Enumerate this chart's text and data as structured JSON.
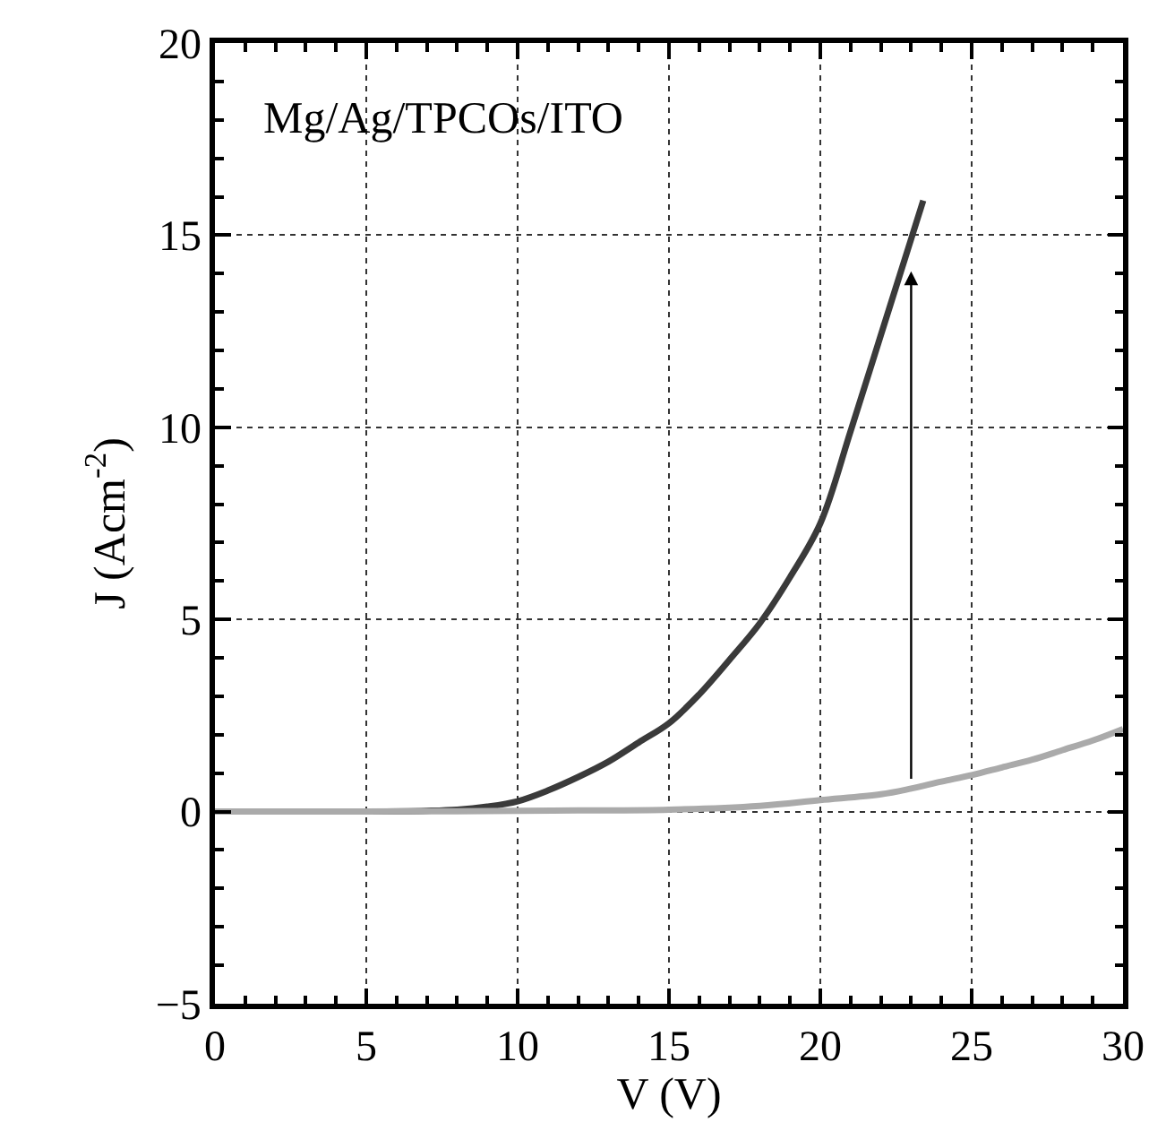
{
  "chart_data": {
    "type": "line",
    "xlabel": "V (V)",
    "ylabel": "J (Acm$^{-2}$)",
    "xlim": [
      0,
      30
    ],
    "xticks": [
      0,
      5,
      10,
      15,
      20,
      25,
      30
    ],
    "ylim": [
      -5,
      20
    ],
    "yticks": [
      -5,
      0,
      5,
      10,
      15,
      20
    ],
    "grid": true,
    "line_style": "solid",
    "marker": "none",
    "annotations": [
      "Mg/Ag/TPCOs/ITO"
    ],
    "series": [
      {
        "color": "#3a3a3a",
        "x": [
          0,
          5,
          7,
          8,
          9,
          10,
          11,
          12,
          13,
          14,
          15,
          16,
          17,
          18,
          19,
          20,
          21,
          22,
          23,
          23.4
        ],
        "values": [
          0,
          0,
          0.02,
          0.05,
          0.13,
          0.27,
          0.55,
          0.9,
          1.3,
          1.8,
          2.3,
          3.05,
          3.95,
          4.9,
          6.1,
          7.5,
          9.9,
          12.4,
          14.9,
          15.9
        ]
      },
      {
        "color": "#aaaaaa",
        "x": [
          0,
          5,
          10,
          12,
          15,
          18,
          20,
          22,
          23,
          24,
          25,
          26,
          27,
          28,
          29,
          30
        ],
        "values": [
          0,
          0,
          0.02,
          0.03,
          0.05,
          0.15,
          0.3,
          0.45,
          0.6,
          0.78,
          0.95,
          1.15,
          1.35,
          1.6,
          1.85,
          2.15
        ]
      }
    ]
  }
}
